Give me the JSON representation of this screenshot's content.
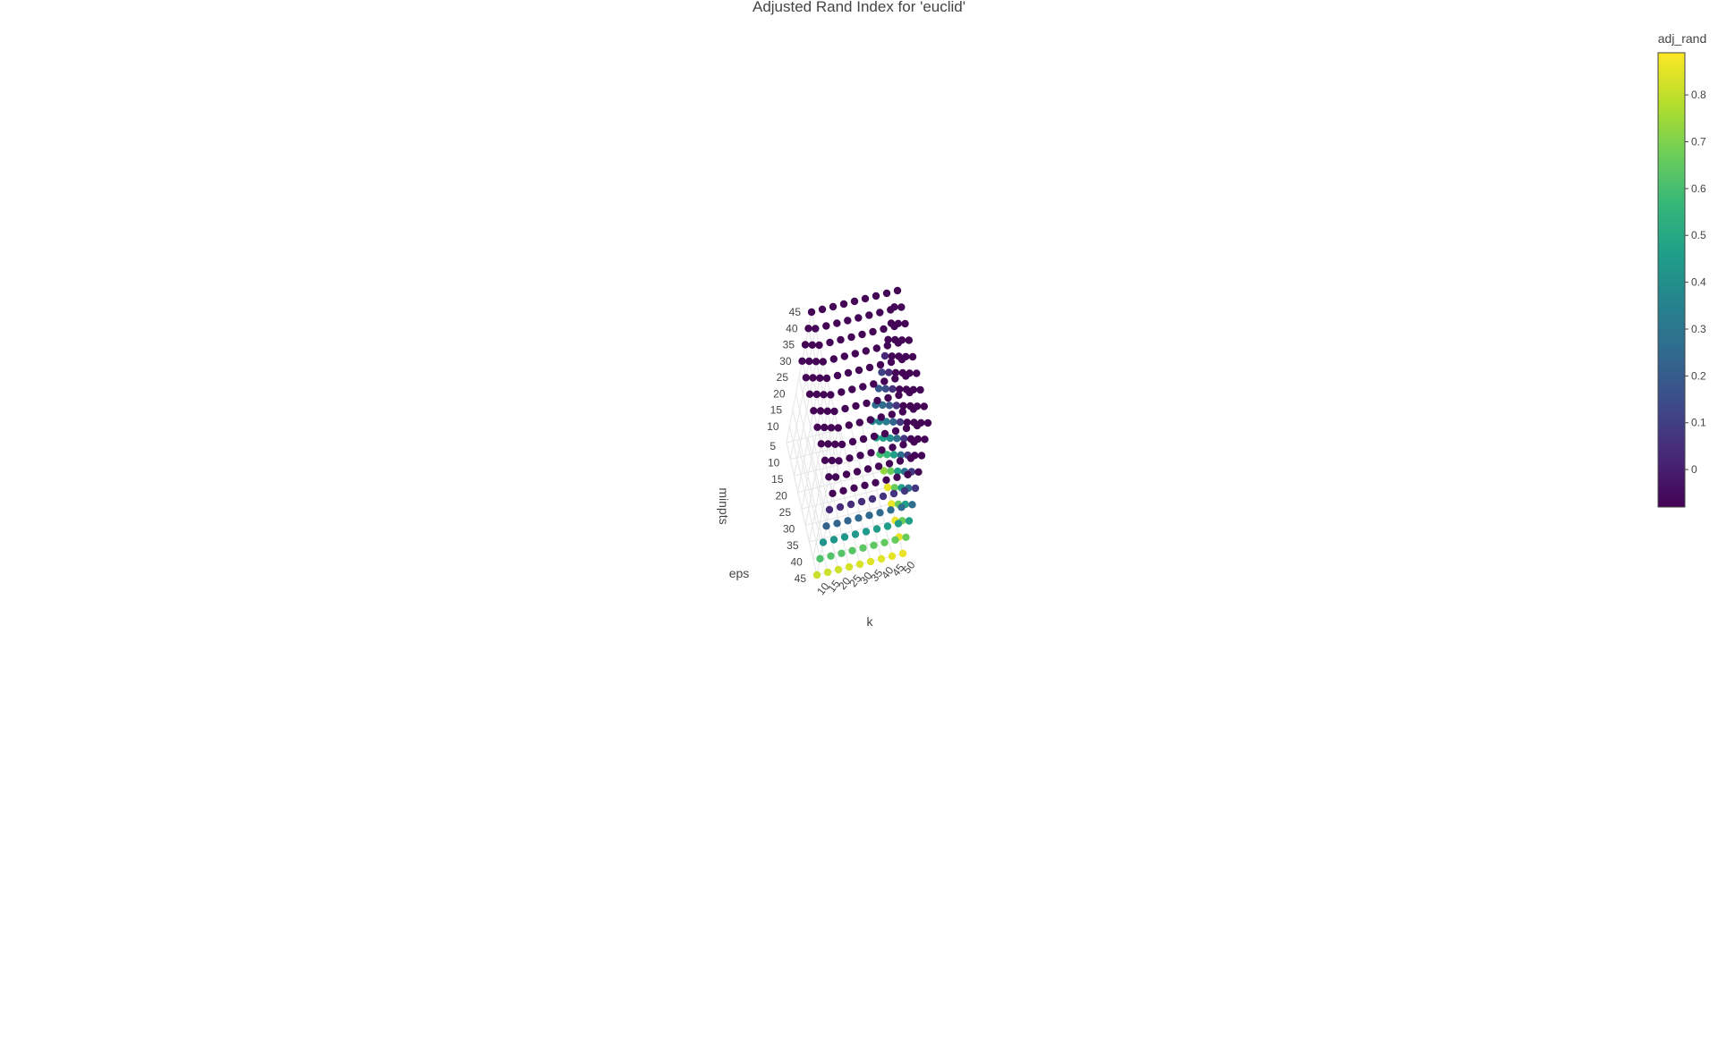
{
  "chart_data": {
    "type": "scatter3d",
    "title": "Adjusted Rand Index for 'euclid'",
    "axes": {
      "x": {
        "label": "k",
        "ticks": [
          "50",
          "45",
          "40",
          "35",
          "30",
          "25",
          "20",
          "15",
          "10"
        ],
        "range": [
          10,
          50
        ]
      },
      "y": {
        "label": "eps",
        "ticks": [
          "5",
          "10",
          "15",
          "20",
          "25",
          "30",
          "35",
          "40",
          "45"
        ],
        "range": [
          5,
          45
        ]
      },
      "z": {
        "label": "minpts",
        "ticks": [
          "10",
          "15",
          "20",
          "25",
          "30",
          "35",
          "40",
          "45"
        ],
        "range": [
          5,
          45
        ]
      }
    },
    "color": {
      "title": "adj_rand",
      "colorscale": "Viridis",
      "range": [
        -0.08,
        0.89
      ],
      "ticks": [
        "0",
        "0.1",
        "0.2",
        "0.3",
        "0.4",
        "0.5",
        "0.6",
        "0.7",
        "0.8"
      ],
      "colors": [
        "#440154",
        "#482878",
        "#3e4989",
        "#31688e",
        "#26828e",
        "#1f9e89",
        "#35b779",
        "#6ece58",
        "#b5de2b",
        "#fde725"
      ]
    },
    "grid": true,
    "legend": "colorbar-right"
  }
}
